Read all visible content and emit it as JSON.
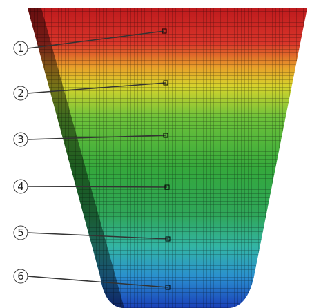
{
  "callouts": [
    {
      "label": "1"
    },
    {
      "label": "2"
    },
    {
      "label": "3"
    },
    {
      "label": "4"
    },
    {
      "label": "5"
    },
    {
      "label": "6"
    }
  ]
}
